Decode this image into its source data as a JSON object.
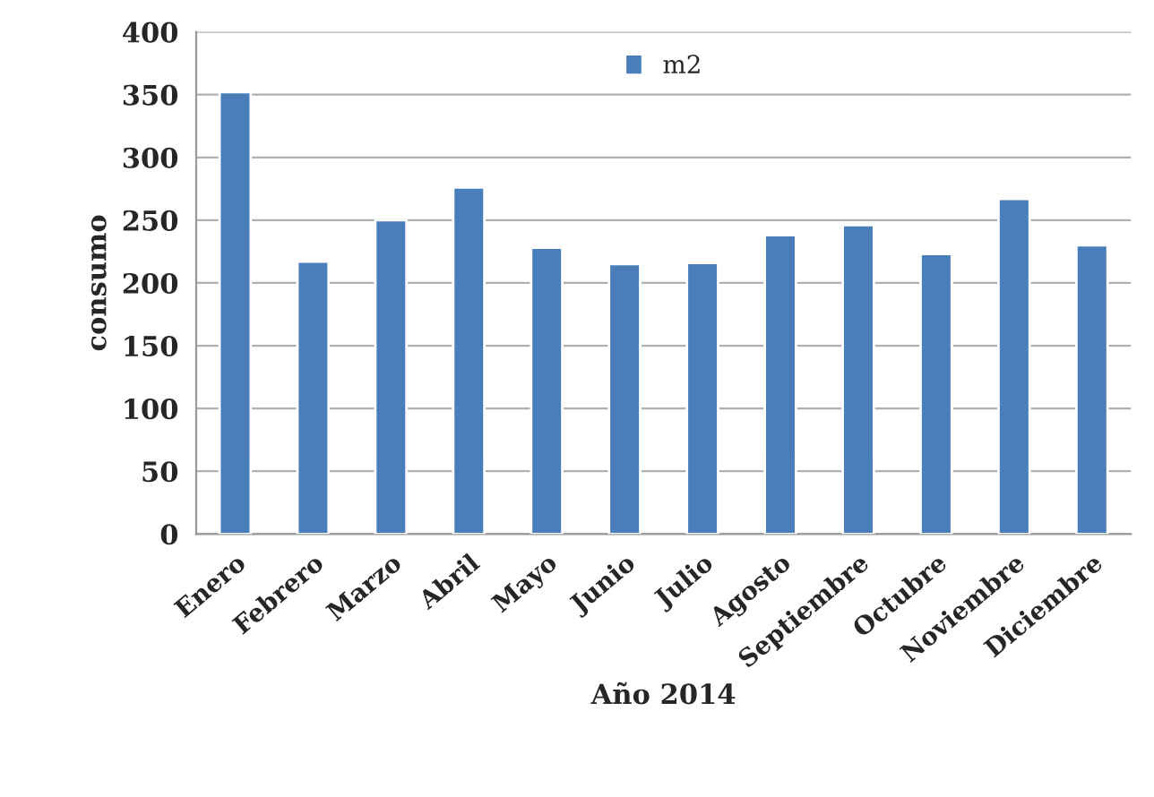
{
  "chart_data": {
    "type": "bar",
    "xlabel": "Año 2014",
    "ylabel": "consumo",
    "categories": [
      "Enero",
      "Febrero",
      "Marzo",
      "Abril",
      "Mayo",
      "Junio",
      "Julio",
      "Agosto",
      "Septiembre",
      "Octubre",
      "Noviembre",
      "Diciembre"
    ],
    "series": [
      {
        "name": "m2",
        "color": "#4a7ebb",
        "values": [
          352,
          217,
          250,
          276,
          228,
          215,
          216,
          238,
          246,
          223,
          267,
          230
        ]
      }
    ],
    "ylim": [
      0,
      400
    ],
    "yticks": [
      0,
      50,
      100,
      150,
      200,
      250,
      300,
      350,
      400
    ],
    "grid": "y",
    "legend": "top"
  }
}
